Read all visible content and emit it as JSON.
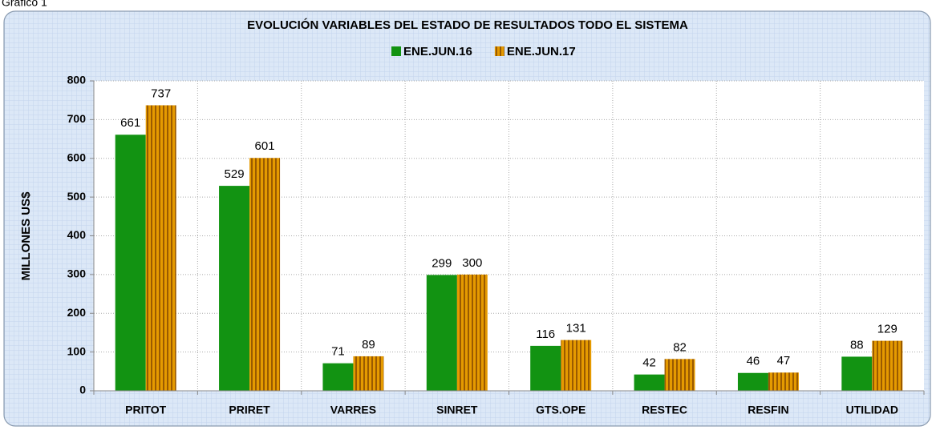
{
  "caption": "Gráfico 1",
  "chart_data": {
    "type": "bar",
    "title": "EVOLUCIÓN VARIABLES DEL ESTADO DE RESULTADOS TODO EL SISTEMA",
    "y_label": "MILLONES US$",
    "categories": [
      "PRITOT",
      "PRIRET",
      "VARRES",
      "SINRET",
      "GTS.OPE",
      "RESTEC",
      "RESFIN",
      "UTILIDAD"
    ],
    "series": [
      {
        "name": "ENE.JUN.16",
        "color": "#129312",
        "values": [
          661,
          529,
          71,
          299,
          116,
          42,
          46,
          88
        ]
      },
      {
        "name": "ENE.JUN.17",
        "color": "#e59a00",
        "pattern": "stripes",
        "values": [
          737,
          601,
          89,
          300,
          131,
          82,
          47,
          129
        ]
      }
    ],
    "ylim": [
      0,
      800
    ],
    "yticks": [
      0,
      100,
      200,
      300,
      400,
      500,
      600,
      700,
      800
    ],
    "grid": true,
    "legend": "top"
  }
}
